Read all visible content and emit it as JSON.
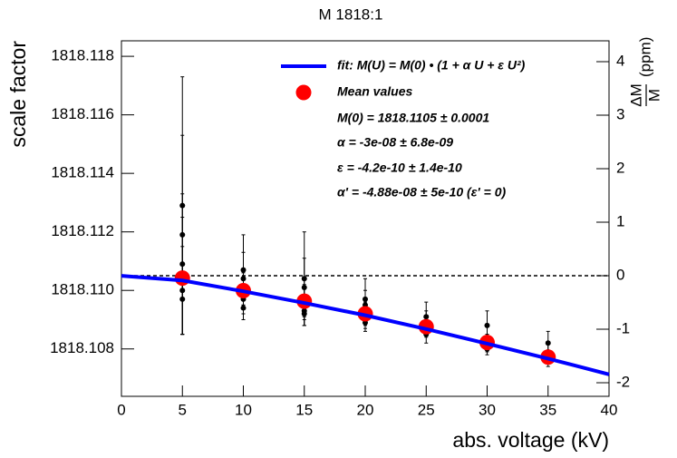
{
  "chart_data": {
    "type": "scatter",
    "title": "M 1818:1",
    "xlabel": "abs. voltage (kV)",
    "ylabel": "scale factor",
    "y2label": {
      "numerator": "ΔM",
      "denominator": "M",
      "unit": "(ppm)"
    },
    "xlim": [
      0,
      40
    ],
    "xticks": [
      0,
      5,
      10,
      15,
      20,
      25,
      30,
      35,
      40
    ],
    "ylim": [
      1818.10638,
      1818.11853
    ],
    "yticks": [
      1818.108,
      {
        "value": 1818.11,
        "label": "1818.110"
      },
      1818.112,
      1818.114,
      1818.116,
      1818.118
    ],
    "y2lim": [
      -2.254,
      4.39
    ],
    "y2ticks": [
      -2,
      -1,
      0,
      1,
      2,
      3,
      4
    ],
    "reference_y2": 0,
    "series": [
      {
        "color": "#000000",
        "x": [
          5,
          5,
          5,
          5,
          5,
          5,
          10,
          10,
          10,
          10,
          10,
          15,
          15,
          15,
          15,
          15,
          20,
          20,
          20,
          20,
          20,
          25,
          25,
          25,
          25,
          30,
          30,
          30,
          30,
          35,
          35,
          35,
          35
        ],
        "values": [
          1818.1129,
          1818.1119,
          1818.1109,
          1818.1105,
          1818.11,
          1818.1097,
          1818.1107,
          1818.1104,
          1818.11,
          1818.1097,
          1818.1094,
          1818.1104,
          1818.1101,
          1818.1096,
          1818.1093,
          1818.1092,
          1818.1097,
          1818.1095,
          1818.1092,
          1818.109,
          1818.1089,
          1818.1091,
          1818.1089,
          1818.1087,
          1818.1085,
          1818.1088,
          1818.1084,
          1818.1082,
          1818.108,
          1818.1082,
          1818.1079,
          1818.1077,
          1818.1076
        ],
        "errors": [
          0.0044,
          0.0034,
          0.0024,
          0.002,
          0.0015,
          0.0012,
          0.0012,
          0.0009,
          0.0006,
          0.0005,
          0.0004,
          0.0016,
          0.001,
          0.0006,
          0.0005,
          0.0004,
          0.0007,
          0.0005,
          0.0004,
          0.0003,
          0.0003,
          0.0005,
          0.0004,
          0.0003,
          0.0003,
          0.0005,
          0.0004,
          0.0003,
          0.0002,
          0.0004,
          0.0003,
          0.0002,
          0.0002
        ]
      },
      {
        "name": "Mean values",
        "color": "#ff0000",
        "x": [
          5,
          10,
          15,
          20,
          25,
          30,
          35
        ],
        "values": [
          1818.11042,
          1818.10999,
          1818.10963,
          1818.1092,
          1818.10876,
          1818.10822,
          1818.10772
        ]
      },
      {
        "name": "fit: M(U) = M(0) • (1 + α U + ε U²)",
        "color": "#0000ff",
        "line": true,
        "x": [
          0,
          5,
          10,
          15,
          20,
          25,
          30,
          35,
          40
        ],
        "values": [
          1818.1105,
          1818.11034,
          1818.10997,
          1818.10957,
          1818.10915,
          1818.10868,
          1818.10818,
          1818.10767,
          1818.10713
        ]
      }
    ],
    "annotations": [
      "M(0) = 1818.1105 ± 0.0001",
      "α = -3e-08 ± 6.8e-09",
      "ε = -4.2e-10 ± 1.4e-10",
      "α' = -4.88e-08 ± 5e-10  (ε' = 0)"
    ]
  }
}
